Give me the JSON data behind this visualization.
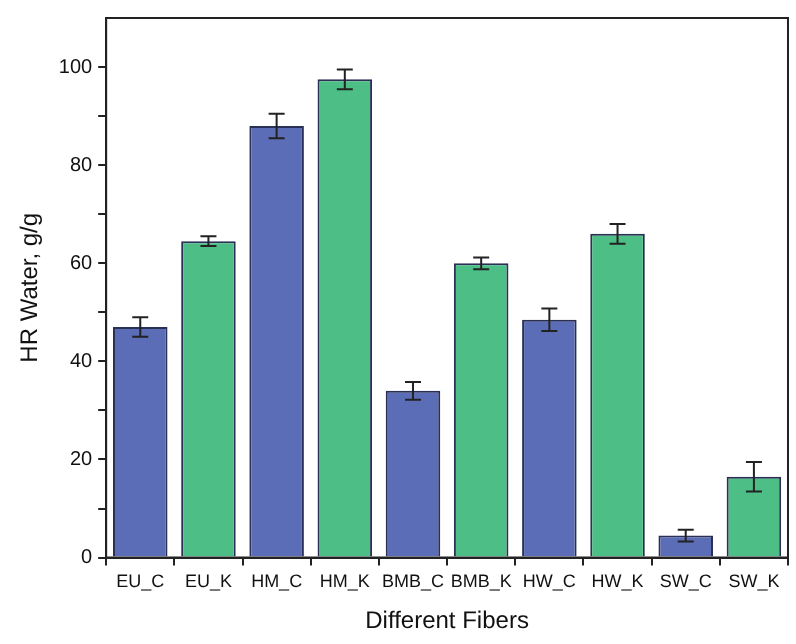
{
  "chart_data": {
    "type": "bar",
    "xlabel": "Different Fibers",
    "ylabel": "HR Water, g/g",
    "categories": [
      "EU_C",
      "EU_K",
      "HM_C",
      "HM_K",
      "BMB_C",
      "BMB_K",
      "HW_C",
      "HW_K",
      "SW_C",
      "SW_K"
    ],
    "values": [
      47,
      64.5,
      88,
      97.5,
      34,
      60,
      48.5,
      66,
      4.5,
      16.5
    ],
    "errors": [
      2,
      1,
      2.5,
      2,
      1.8,
      1.2,
      2.3,
      2,
      1.2,
      3
    ],
    "colors": [
      "#5a6db6",
      "#4dbf86",
      "#5a6db6",
      "#4dbf86",
      "#5a6db6",
      "#4dbf86",
      "#5a6db6",
      "#4dbf86",
      "#5a6db6",
      "#4dbf86"
    ],
    "ylim": [
      0,
      110
    ],
    "yticks": [
      0,
      {
        "value": 10,
        "label": null
      },
      20,
      {
        "value": 30,
        "label": null
      },
      40,
      {
        "value": 50,
        "label": null
      },
      60,
      {
        "value": 70,
        "label": null
      },
      80,
      {
        "value": 90,
        "label": null
      },
      100
    ],
    "grid": false,
    "legend": false
  }
}
